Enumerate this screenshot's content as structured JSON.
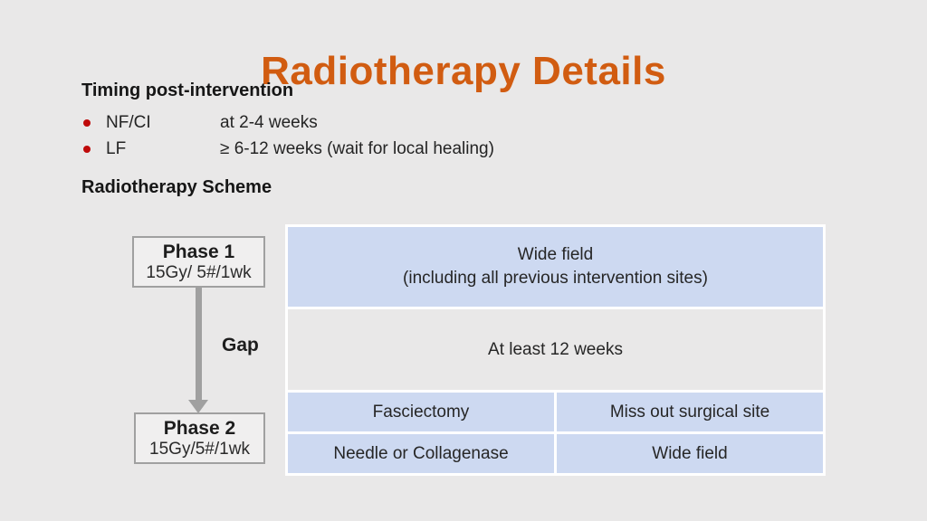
{
  "slide": {
    "title": "Radiotherapy Details",
    "timing": {
      "heading": "Timing post-intervention",
      "bullets": [
        {
          "label": "NF/CI",
          "value": "at 2-4 weeks"
        },
        {
          "label": "LF",
          "value": "≥ 6-12 weeks (wait for local healing)"
        }
      ]
    },
    "scheme": {
      "heading": "Radiotherapy Scheme",
      "phase1": {
        "name": "Phase 1",
        "dose": "15Gy/ 5#/1wk"
      },
      "gap_label": "Gap",
      "phase2": {
        "name": "Phase 2",
        "dose": "15Gy/5#/1wk"
      },
      "table": {
        "rows": [
          {
            "lines": [
              "Wide field",
              "(including all previous intervention sites)"
            ]
          },
          {
            "lines": [
              "At least 12 weeks"
            ]
          },
          {
            "cells": [
              "Fasciectomy",
              "Miss out surgical site"
            ]
          },
          {
            "cells": [
              "Needle or Collagenase",
              "Wide field"
            ]
          }
        ]
      }
    },
    "colors": {
      "background": "#e9e8e8",
      "title_orange": "#d15c11",
      "bullet_red": "#bf0a0a",
      "table_blue": "#cdd9f1",
      "table_gray": "#e9e8e8",
      "arrow_gray": "#a0a0a0"
    }
  }
}
